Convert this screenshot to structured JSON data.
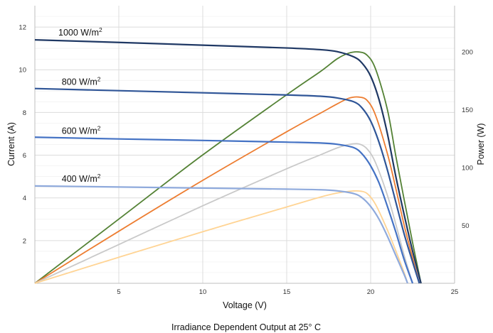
{
  "chart_data": {
    "type": "line",
    "caption": "Irradiance Dependent Output at 25° C",
    "xlabel": "Voltage (V)",
    "ylabel": "Current (A)",
    "y2label": "Power (W)",
    "xlim": [
      0,
      25
    ],
    "ylim": [
      0,
      13
    ],
    "y2lim": [
      0,
      240
    ],
    "x_ticks": [
      5,
      10,
      15,
      20,
      25
    ],
    "y_ticks": [
      2,
      4,
      6,
      8,
      10,
      12
    ],
    "y2_ticks": [
      50,
      100,
      150,
      200
    ],
    "grid": true,
    "labels": [
      {
        "text": "1000 W/m",
        "sup": "2",
        "anchor_x": 1.4,
        "anchor_y": 11.6
      },
      {
        "text": "800 W/m",
        "sup": "2",
        "anchor_x": 1.6,
        "anchor_y": 9.3
      },
      {
        "text": "600 W/m",
        "sup": "2",
        "anchor_x": 1.6,
        "anchor_y": 7.0
      },
      {
        "text": "400 W/m",
        "sup": "2",
        "anchor_x": 1.6,
        "anchor_y": 4.75
      }
    ],
    "current_series": [
      {
        "irradiance": 1000,
        "color": "#1f3864",
        "x": [
          0,
          5,
          10,
          15,
          17,
          18,
          19,
          19.5,
          20,
          20.5,
          21,
          21.5,
          22,
          22.5,
          23
        ],
        "y": [
          11.4,
          11.28,
          11.15,
          11.02,
          10.94,
          10.85,
          10.6,
          10.3,
          9.7,
          8.6,
          7.0,
          5.0,
          3.2,
          1.5,
          0
        ]
      },
      {
        "irradiance": 800,
        "color": "#2f5597",
        "x": [
          0,
          5,
          10,
          15,
          17,
          18,
          19,
          19.5,
          20,
          20.5,
          21,
          21.5,
          22,
          22.5,
          22.9
        ],
        "y": [
          9.12,
          9.02,
          8.92,
          8.82,
          8.76,
          8.68,
          8.5,
          8.2,
          7.6,
          6.6,
          5.3,
          3.8,
          2.3,
          1.0,
          0
        ]
      },
      {
        "irradiance": 600,
        "color": "#4472c4",
        "x": [
          0,
          5,
          10,
          15,
          17,
          18,
          19,
          19.5,
          20,
          20.5,
          21,
          21.5,
          22,
          22.5
        ],
        "y": [
          6.84,
          6.76,
          6.69,
          6.61,
          6.57,
          6.51,
          6.35,
          6.05,
          5.5,
          4.7,
          3.6,
          2.4,
          1.1,
          0
        ]
      },
      {
        "irradiance": 400,
        "color": "#8faadc",
        "x": [
          0,
          5,
          10,
          15,
          17,
          18,
          19,
          19.5,
          20,
          20.5,
          21,
          21.5,
          22,
          22.2
        ],
        "y": [
          4.56,
          4.51,
          4.46,
          4.41,
          4.38,
          4.33,
          4.2,
          4.0,
          3.6,
          3.0,
          2.2,
          1.3,
          0.4,
          0
        ]
      }
    ],
    "power_series": [
      {
        "irradiance": 1000,
        "color": "#548235",
        "x": [
          0,
          5,
          10,
          15,
          17,
          18,
          18.7,
          19.3,
          19.8,
          20.3,
          21,
          21.5,
          22,
          22.5,
          23
        ],
        "y": [
          0,
          55.5,
          111,
          163,
          183,
          194,
          199,
          200,
          197,
          185,
          150,
          110,
          72,
          35,
          0
        ]
      },
      {
        "irradiance": 800,
        "color": "#ed7d31",
        "x": [
          0,
          5,
          10,
          15,
          17,
          18,
          18.7,
          19.3,
          19.8,
          20.3,
          21,
          21.5,
          22,
          22.5,
          22.9
        ],
        "y": [
          0,
          45,
          89,
          131,
          147,
          155,
          160,
          161,
          158,
          145,
          112,
          82,
          50,
          22,
          0
        ]
      },
      {
        "irradiance": 600,
        "color": "#c9c9c9",
        "x": [
          0,
          5,
          10,
          15,
          17,
          18,
          18.7,
          19.3,
          19.8,
          20.3,
          21,
          21.5,
          22,
          22.5
        ],
        "y": [
          0,
          33.5,
          67,
          99,
          111,
          117,
          120,
          120.5,
          116,
          104,
          76,
          51,
          24,
          0
        ]
      },
      {
        "irradiance": 400,
        "color": "#ffd494",
        "x": [
          0,
          5,
          10,
          15,
          17,
          18,
          18.7,
          19.3,
          19.8,
          20.3,
          21,
          21.5,
          22,
          22.2
        ],
        "y": [
          0,
          22.5,
          44.6,
          66,
          74.5,
          78,
          79.5,
          79.8,
          77.5,
          68,
          46,
          28,
          9,
          0
        ]
      }
    ]
  }
}
